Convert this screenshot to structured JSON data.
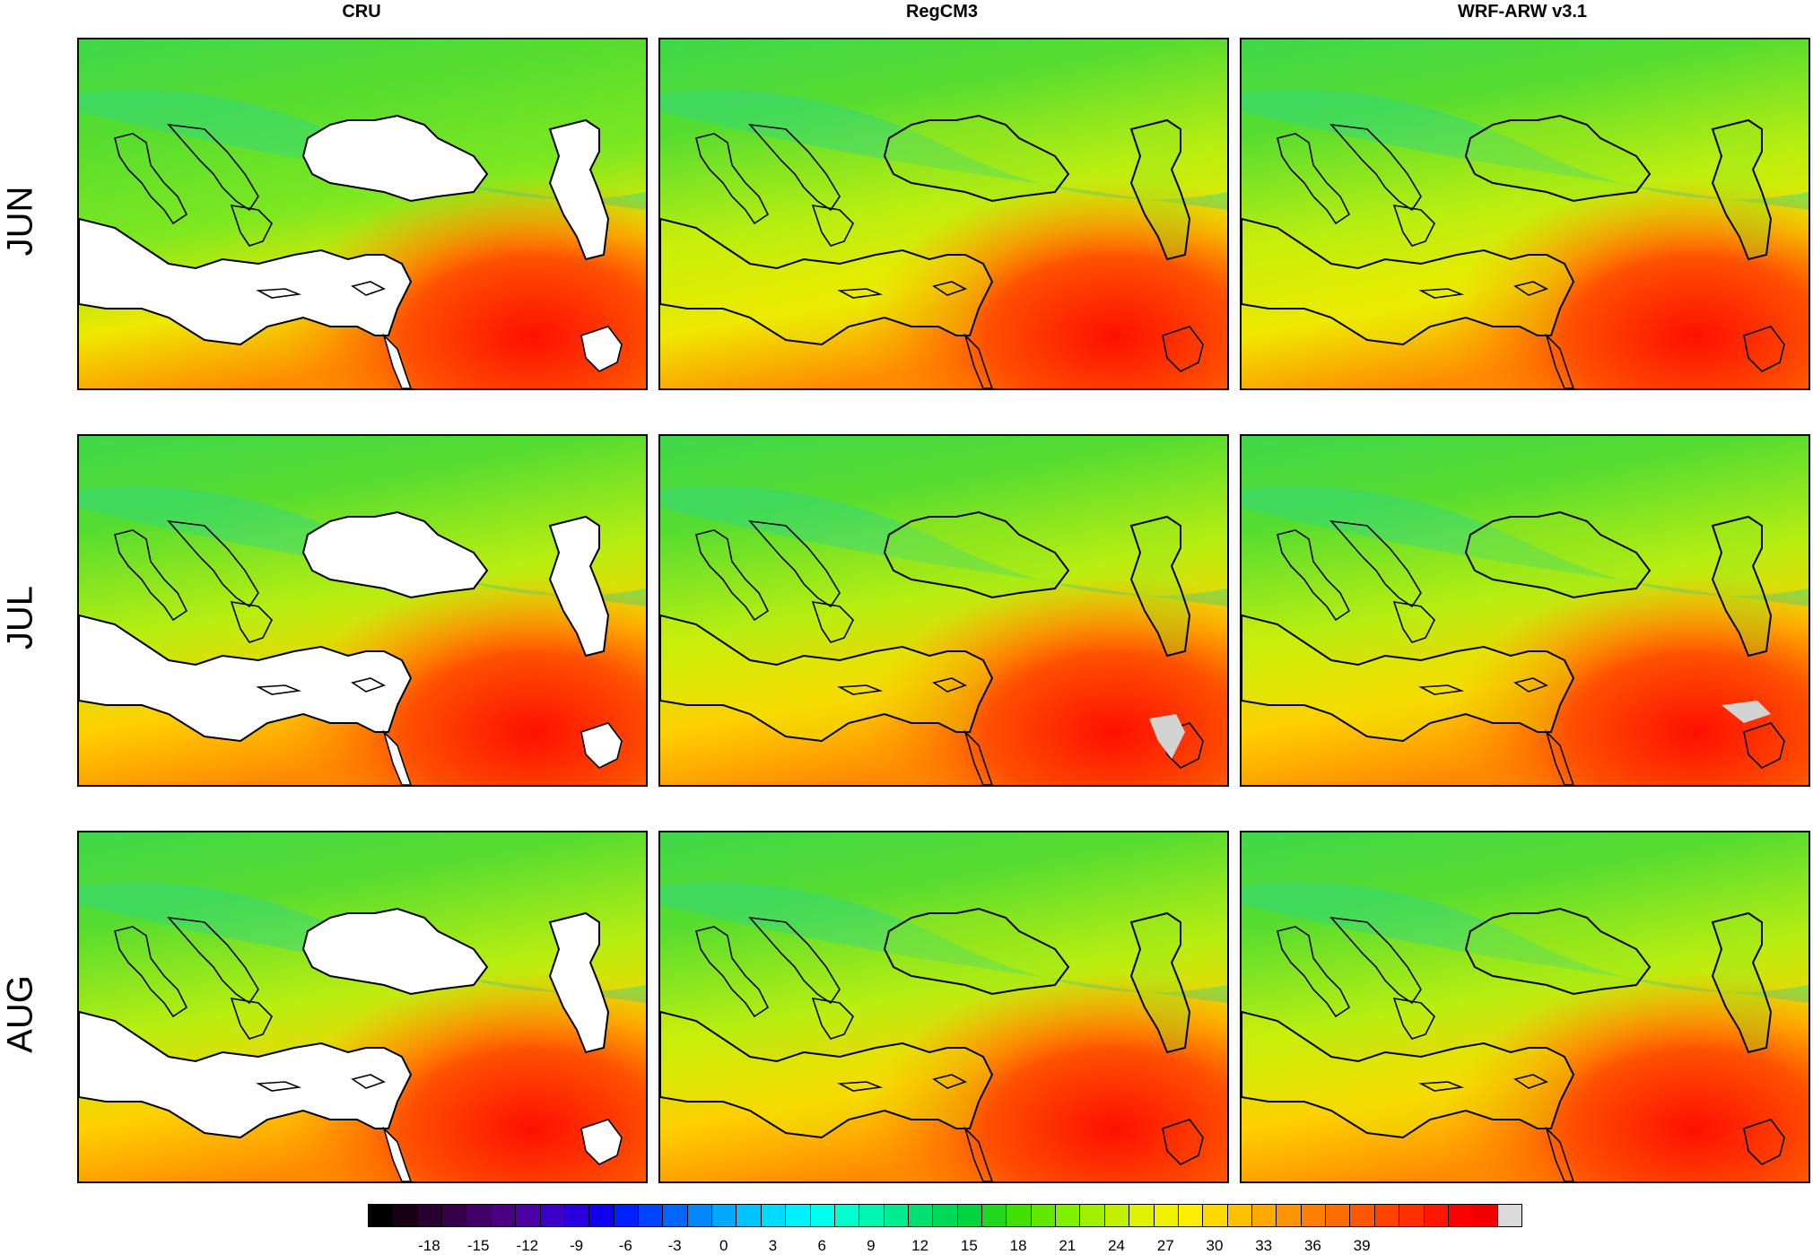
{
  "columns": [
    {
      "title": "CRU"
    },
    {
      "title": "RegCM3"
    },
    {
      "title": "WRF-ARW v3.1"
    }
  ],
  "rows": [
    {
      "title": "JUN"
    },
    {
      "title": "JUL"
    },
    {
      "title": "AUG"
    }
  ],
  "colorbar": {
    "tick_labels": [
      "-18",
      "-15",
      "-12",
      "-9",
      "-6",
      "-3",
      "0",
      "3",
      "6",
      "9",
      "12",
      "15",
      "18",
      "21",
      "24",
      "27",
      "30",
      "33",
      "36",
      "39"
    ],
    "colors": [
      "#000000",
      "#1a0014",
      "#2a0030",
      "#37004a",
      "#420066",
      "#4b0082",
      "#4c00a6",
      "#3d00c8",
      "#2a00e0",
      "#1000f0",
      "#0020ff",
      "#0044ff",
      "#0066ff",
      "#0088ff",
      "#00a8ff",
      "#00c4ff",
      "#00dcff",
      "#00f0ff",
      "#00ffee",
      "#00ffd0",
      "#00f5b0",
      "#00ec90",
      "#00e070",
      "#00d858",
      "#00d440",
      "#20d820",
      "#40e000",
      "#60e800",
      "#80f000",
      "#a0f000",
      "#c0f000",
      "#e0f000",
      "#f0f000",
      "#ffee00",
      "#ffd800",
      "#ffc000",
      "#ffa800",
      "#ff9400",
      "#ff8000",
      "#ff6c00",
      "#ff5800",
      "#ff4400",
      "#ff3000",
      "#ff1800",
      "#ff0000",
      "#f00000",
      "#dadada"
    ],
    "over_color": "#d3d3d3"
  }
}
